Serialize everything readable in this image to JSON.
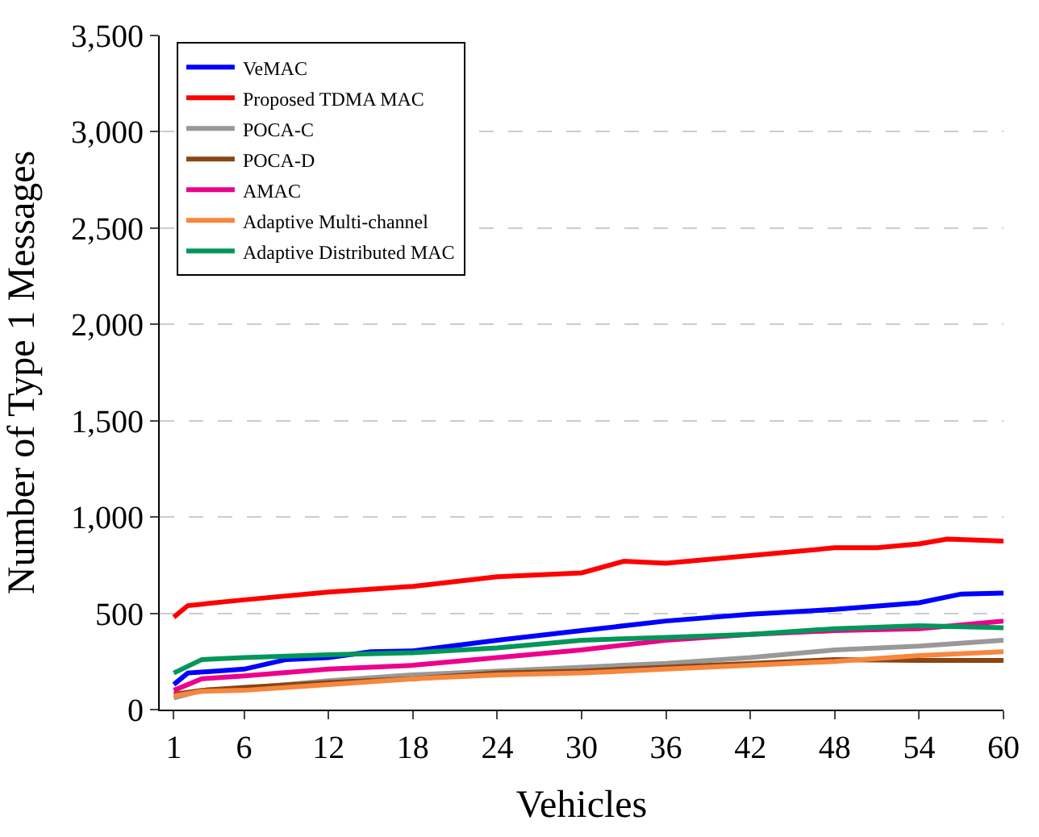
{
  "chart_data": {
    "type": "line",
    "xlabel": "Vehicles",
    "ylabel": "Number of Type 1 Messages",
    "xlim": [
      0,
      60
    ],
    "xticks": [
      1,
      6,
      12,
      18,
      24,
      30,
      36,
      42,
      48,
      54,
      60
    ],
    "ylim": [
      0,
      3500
    ],
    "yticks": [
      0,
      {
        "value": 500,
        "label": "500"
      },
      {
        "value": 1000,
        "label": "1,000"
      },
      {
        "value": 1500,
        "label": "1,500"
      },
      {
        "value": 2000,
        "label": "2,000"
      },
      {
        "value": 2500,
        "label": "2,500"
      },
      {
        "value": 3000,
        "label": "3,000"
      },
      {
        "value": 3500,
        "label": "3,500"
      }
    ],
    "grid": "y",
    "legend": "top left",
    "marker": "none",
    "line_style": "solid",
    "series": [
      {
        "name": "VeMAC",
        "color": "#0000ff",
        "x": [
          1,
          2,
          6,
          9,
          12,
          15,
          18,
          24,
          30,
          36,
          42,
          48,
          54,
          57,
          60
        ],
        "values": [
          130,
          190,
          210,
          260,
          270,
          300,
          305,
          360,
          410,
          460,
          495,
          520,
          555,
          600,
          605
        ]
      },
      {
        "name": "Proposed TDMA MAC",
        "color": "#ff0000",
        "x": [
          1,
          2,
          6,
          12,
          18,
          24,
          30,
          33,
          36,
          42,
          48,
          51,
          54,
          56,
          60
        ],
        "values": [
          480,
          540,
          570,
          610,
          640,
          690,
          710,
          770,
          760,
          800,
          840,
          840,
          860,
          885,
          875
        ]
      },
      {
        "name": "POCA-C",
        "color": "#999999",
        "x": [
          1,
          3,
          6,
          12,
          18,
          24,
          30,
          36,
          42,
          48,
          54,
          60
        ],
        "values": [
          60,
          100,
          110,
          150,
          180,
          200,
          220,
          240,
          270,
          310,
          330,
          360
        ]
      },
      {
        "name": "POCA-D",
        "color": "#8b4513",
        "x": [
          1,
          3,
          6,
          12,
          18,
          24,
          30,
          36,
          42,
          48,
          54,
          60
        ],
        "values": [
          80,
          100,
          115,
          140,
          160,
          190,
          200,
          220,
          240,
          260,
          255,
          255
        ]
      },
      {
        "name": "AMAC",
        "color": "#ec008c",
        "x": [
          1,
          3,
          6,
          12,
          18,
          24,
          30,
          36,
          42,
          48,
          54,
          60
        ],
        "values": [
          100,
          160,
          175,
          210,
          230,
          270,
          310,
          360,
          390,
          410,
          420,
          460
        ]
      },
      {
        "name": "Adaptive Multi-channel",
        "color": "#f7873f",
        "x": [
          1,
          3,
          6,
          12,
          18,
          24,
          30,
          36,
          42,
          48,
          54,
          60
        ],
        "values": [
          70,
          95,
          100,
          130,
          160,
          180,
          190,
          210,
          230,
          250,
          280,
          300
        ]
      },
      {
        "name": "Adaptive Distributed MAC",
        "color": "#00975a",
        "x": [
          1,
          3,
          6,
          12,
          18,
          24,
          30,
          36,
          42,
          48,
          54,
          60
        ],
        "values": [
          190,
          260,
          270,
          285,
          295,
          320,
          360,
          375,
          390,
          420,
          435,
          425
        ]
      }
    ]
  }
}
